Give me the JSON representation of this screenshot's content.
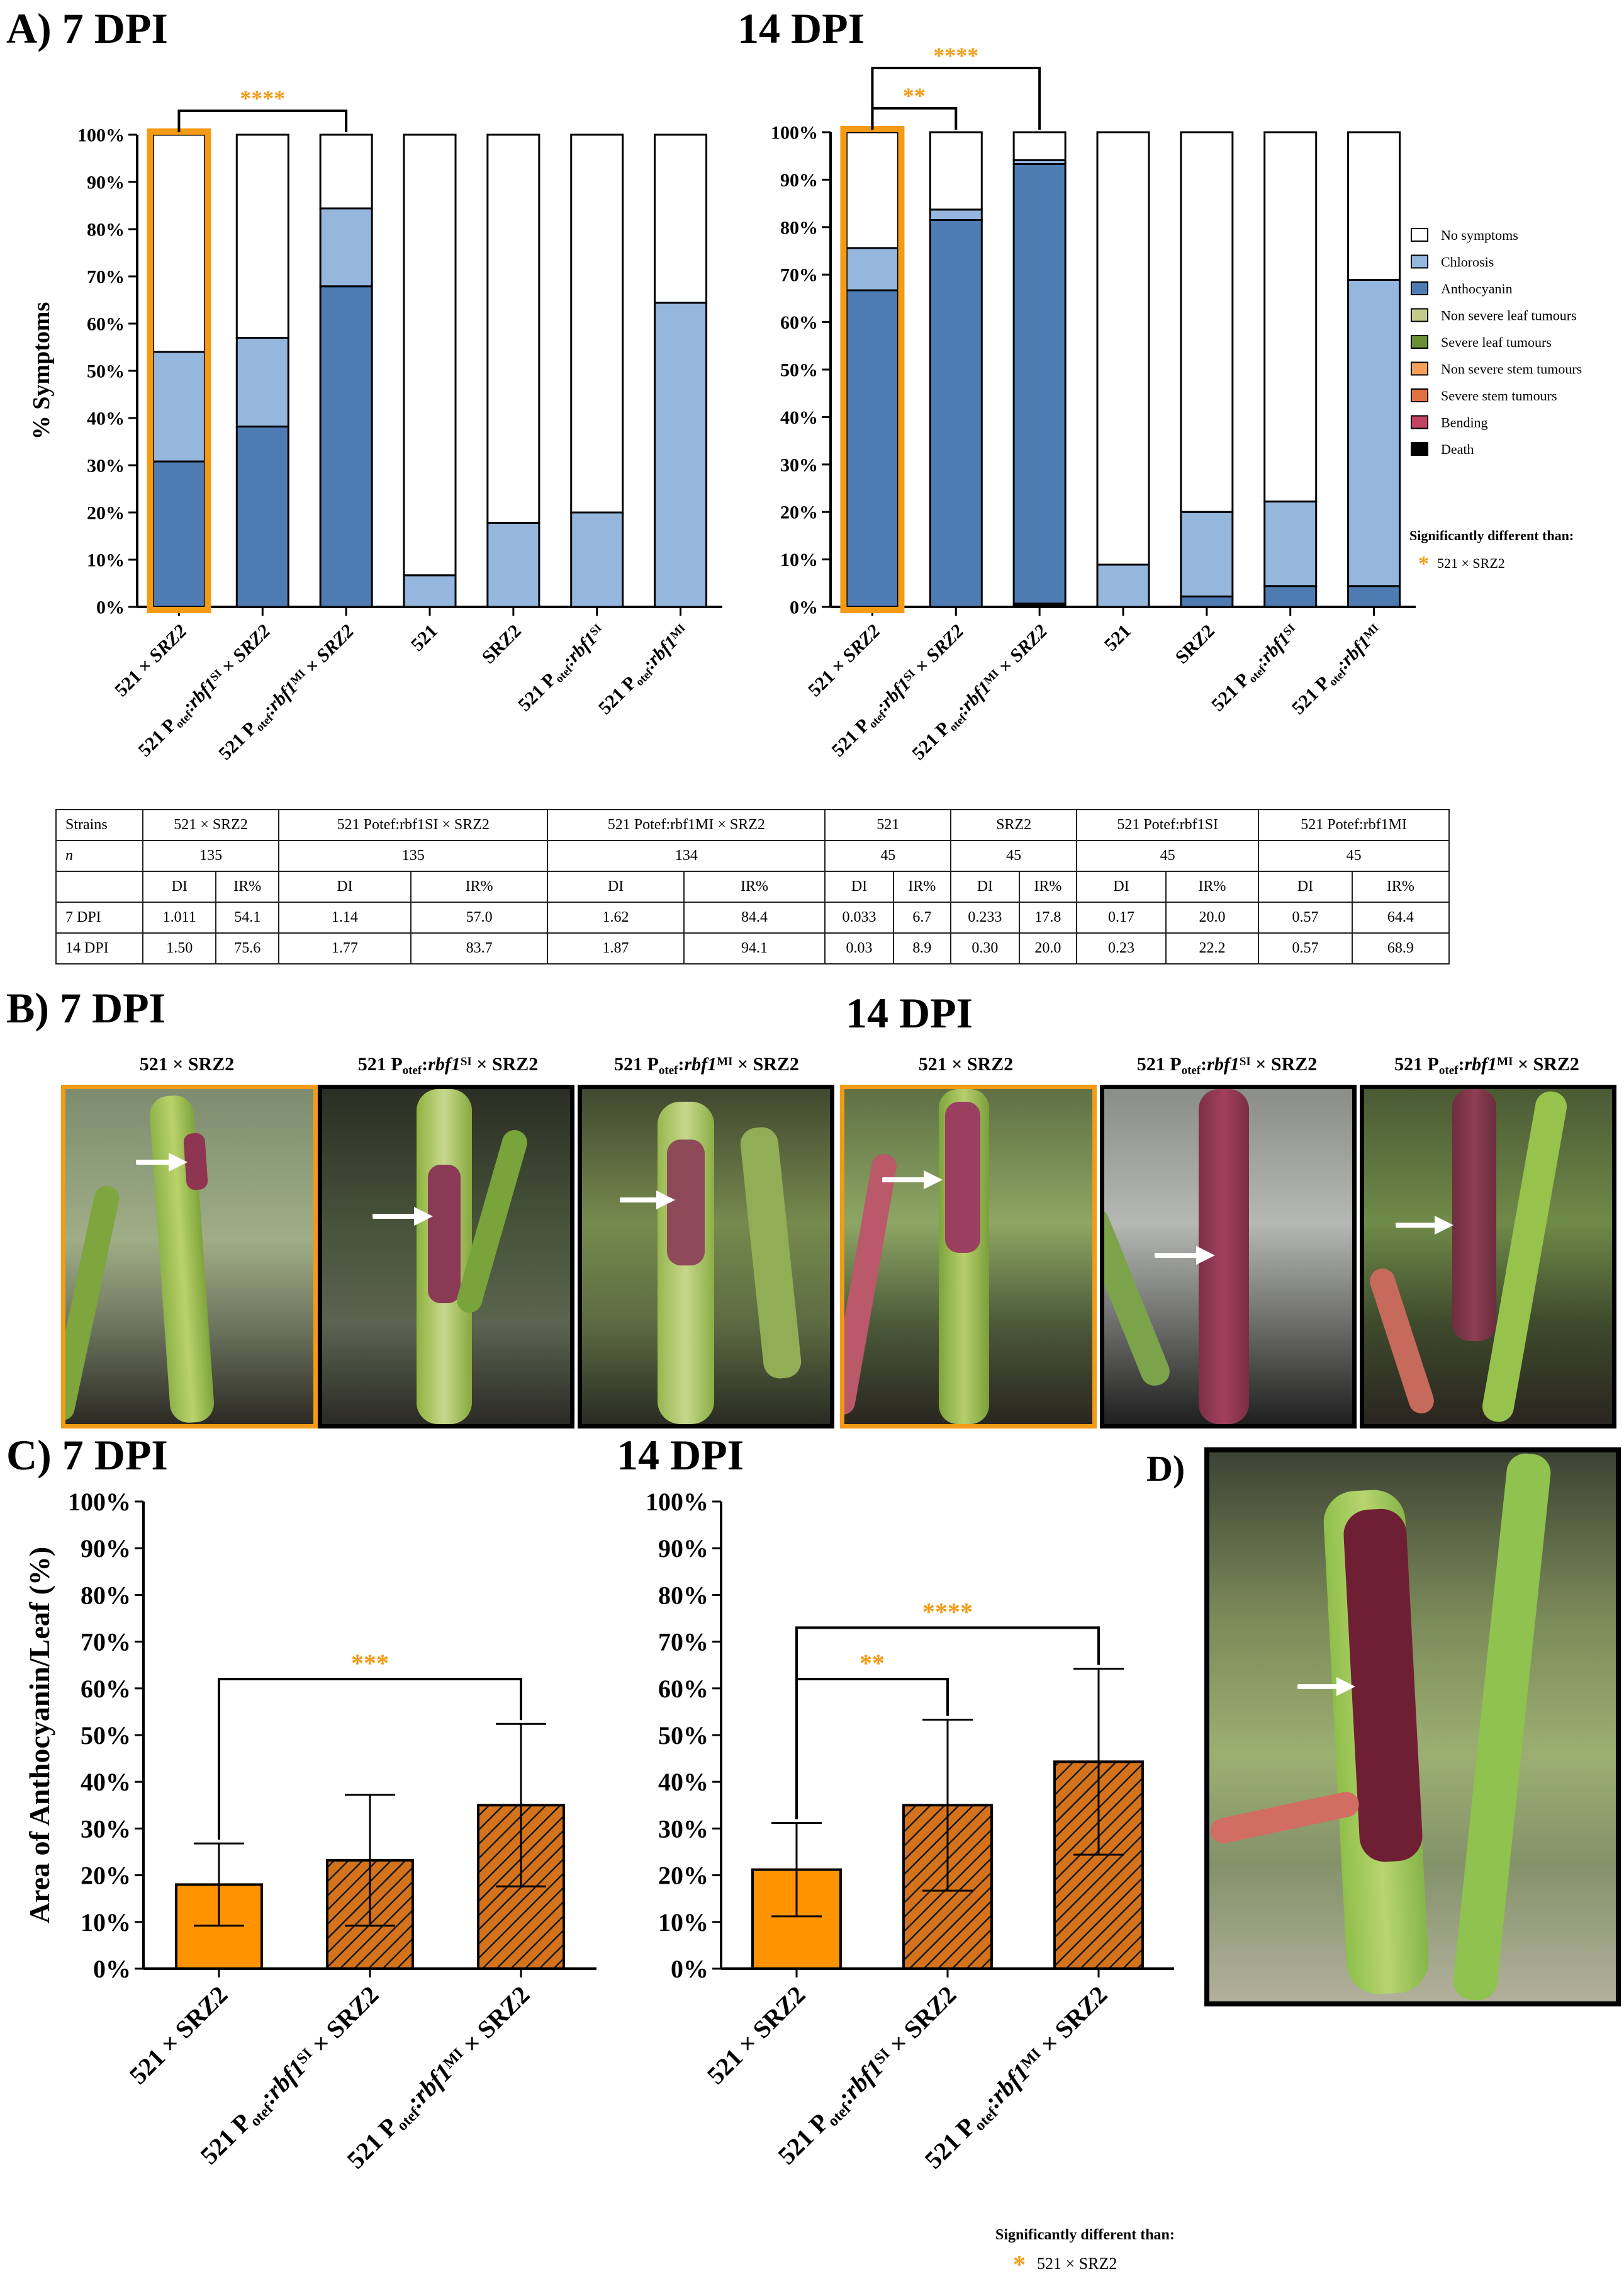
{
  "panel_labels": {
    "a_7": "A) 7 DPI",
    "a_14": "14 DPI",
    "b_7": "B) 7 DPI",
    "b_14": "14 DPI",
    "c_7": "C) 7 DPI",
    "c_14": "14 DPI",
    "d": "D)"
  },
  "colors": {
    "no_symptoms": "#ffffff",
    "chlorosis": "#95b7de",
    "anthocyanin": "#4f7bb3",
    "non_severe_leaf_tumours": "#c2cb8d",
    "severe_leaf_tumours": "#6a8f35",
    "non_severe_stem_tumours": "#f4a05a",
    "severe_stem_tumours": "#de7240",
    "bending": "#c34362",
    "death": "#000000",
    "highlight": "#f59a14",
    "bar_orange": "#ff9300",
    "bar_hatch": "#d4731c"
  },
  "legend": {
    "items": [
      "No symptoms",
      "Chlorosis",
      "Anthocyanin",
      "Non severe leaf tumours",
      "Severe leaf tumours",
      "Non severe stem tumours",
      "Severe stem tumours",
      "Bending",
      "Death"
    ],
    "sig_title": "Significantly different than:",
    "sig_item": "521 × SRZ2"
  },
  "stars": {
    "four": "****",
    "three": "***",
    "two": "**",
    "one": "*"
  },
  "table": {
    "header": [
      "Strains",
      "521 × SRZ2",
      "521 Potef:rbf1SI × SRZ2",
      "521 Potef:rbf1MI × SRZ2",
      "521",
      "SRZ2",
      "521 Potef:rbf1SI",
      "521 Potef:rbf1MI"
    ],
    "n_label": "n",
    "n": [
      "135",
      "135",
      "134",
      "45",
      "45",
      "45",
      "45"
    ],
    "subheaders": [
      "DI",
      "IR%"
    ],
    "rows": [
      {
        "label": "7 DPI",
        "values": [
          "1.011",
          "54.1",
          "1.14",
          "57.0",
          "1.62",
          "84.4",
          "0.033",
          "6.7",
          "0.233",
          "17.8",
          "0.17",
          "20.0",
          "0.57",
          "64.4"
        ]
      },
      {
        "label": "14 DPI",
        "values": [
          "1.50",
          "75.6",
          "1.77",
          "83.7",
          "1.87",
          "94.1",
          "0.03",
          "8.9",
          "0.30",
          "20.0",
          "0.23",
          "22.2",
          "0.57",
          "68.9"
        ]
      }
    ]
  },
  "photo_titles": [
    "521 × SRZ2",
    "521 Potef:rbf1SI × SRZ2",
    "521 Potef:rbf1MI × SRZ2",
    "521 × SRZ2",
    "521 Potef:rbf1SI × SRZ2",
    "521 Potef:rbf1MI × SRZ2"
  ],
  "chart_data": [
    {
      "type": "bar",
      "stacked": true,
      "title": "7 DPI",
      "ylabel": "% Symptoms",
      "ylim": [
        0,
        100
      ],
      "yticks": [
        "0%",
        "10%",
        "20%",
        "30%",
        "40%",
        "50%",
        "60%",
        "70%",
        "80%",
        "90%",
        "100%"
      ],
      "categories": [
        "521 × SRZ2",
        "521 Potef:rbf1SI × SRZ2",
        "521 Potef:rbf1MI × SRZ2",
        "521",
        "SRZ2",
        "521 Potef:rbf1SI",
        "521 Potef:rbf1MI"
      ],
      "series": [
        {
          "name": "Death",
          "values": [
            0,
            0,
            0,
            0,
            0,
            0,
            0
          ]
        },
        {
          "name": "Anthocyanin",
          "values": [
            30.8,
            38.2,
            67.9,
            0,
            0,
            0,
            0
          ]
        },
        {
          "name": "Chlorosis",
          "values": [
            23.2,
            18.8,
            16.5,
            6.7,
            17.8,
            20.0,
            64.4
          ]
        },
        {
          "name": "No symptoms",
          "values": [
            46.0,
            43.0,
            15.6,
            93.3,
            82.2,
            80.0,
            35.6
          ]
        }
      ],
      "highlight_category": "521 × SRZ2",
      "significance": [
        {
          "from": "521 × SRZ2",
          "to": "521 Potef:rbf1MI × SRZ2",
          "label": "****"
        }
      ]
    },
    {
      "type": "bar",
      "stacked": true,
      "title": "14 DPI",
      "ylim": [
        0,
        100
      ],
      "yticks": [
        "0%",
        "10%",
        "20%",
        "30%",
        "40%",
        "50%",
        "60%",
        "70%",
        "80%",
        "90%",
        "100%"
      ],
      "categories": [
        "521 × SRZ2",
        "521 Potef:rbf1SI × SRZ2",
        "521 Potef:rbf1MI × SRZ2",
        "521",
        "SRZ2",
        "521 Potef:rbf1SI",
        "521 Potef:rbf1MI"
      ],
      "series": [
        {
          "name": "Death",
          "values": [
            0,
            0,
            0.7,
            0,
            0,
            0,
            0
          ]
        },
        {
          "name": "Anthocyanin",
          "values": [
            66.7,
            81.5,
            92.6,
            0,
            2.2,
            4.4,
            4.4
          ]
        },
        {
          "name": "Chlorosis",
          "values": [
            8.9,
            2.2,
            0.8,
            8.9,
            17.8,
            17.8,
            64.5
          ]
        },
        {
          "name": "No symptoms",
          "values": [
            24.4,
            16.3,
            5.9,
            91.1,
            80.0,
            77.8,
            31.1
          ]
        }
      ],
      "highlight_category": "521 × SRZ2",
      "significance": [
        {
          "from": "521 × SRZ2",
          "to": "521 Potef:rbf1SI × SRZ2",
          "label": "**"
        },
        {
          "from": "521 × SRZ2",
          "to": "521 Potef:rbf1MI × SRZ2",
          "label": "****"
        }
      ]
    },
    {
      "type": "bar",
      "title": "7 DPI",
      "ylabel": "Area of Anthocyanin/Leaf (%)",
      "ylim": [
        0,
        100
      ],
      "yticks": [
        "0%",
        "10%",
        "20%",
        "30%",
        "40%",
        "50%",
        "60%",
        "70%",
        "80%",
        "90%",
        "100%"
      ],
      "categories": [
        "521 × SRZ2",
        "521 Potef:rbf1SI × SRZ2",
        "521 Potef:rbf1MI × SRZ2"
      ],
      "values": [
        18.0,
        23.2,
        35.0
      ],
      "errors": [
        8.8,
        14.0,
        17.4
      ],
      "significance": [
        {
          "from": "521 × SRZ2",
          "to": "521 Potef:rbf1MI × SRZ2",
          "label": "***"
        }
      ]
    },
    {
      "type": "bar",
      "title": "14 DPI",
      "ylim": [
        0,
        100
      ],
      "yticks": [
        "0%",
        "10%",
        "20%",
        "30%",
        "40%",
        "50%",
        "60%",
        "70%",
        "80%",
        "90%",
        "100%"
      ],
      "categories": [
        "521 × SRZ2",
        "521 Potef:rbf1SI × SRZ2",
        "521 Potef:rbf1MI × SRZ2"
      ],
      "values": [
        21.2,
        35.0,
        44.3
      ],
      "errors": [
        10.0,
        18.3,
        19.9
      ],
      "significance": [
        {
          "from": "521 × SRZ2",
          "to": "521 Potef:rbf1SI × SRZ2",
          "label": "**"
        },
        {
          "from": "521 × SRZ2",
          "to": "521 Potef:rbf1MI × SRZ2",
          "label": "****"
        }
      ]
    }
  ]
}
